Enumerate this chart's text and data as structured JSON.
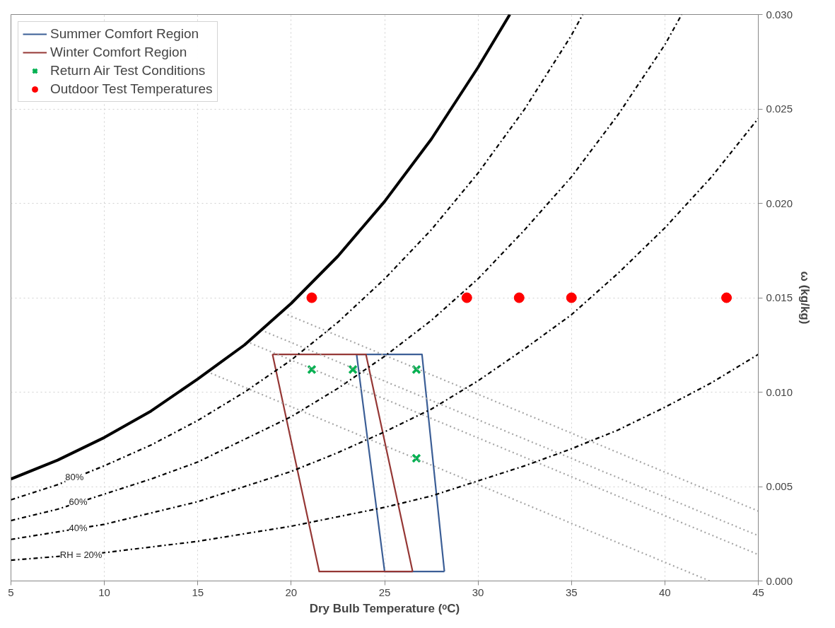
{
  "chart_data": {
    "type": "line",
    "xlabel": "Dry Bulb Temperature (ᵒC)",
    "ylabel": "ω (kg/kg)",
    "xlim": [
      5,
      45
    ],
    "xticks": [
      5,
      10,
      15,
      20,
      25,
      30,
      35,
      40,
      45
    ],
    "ylim": [
      0,
      0.03
    ],
    "yticks": [
      {
        "value": 0,
        "label": "0.000"
      },
      {
        "value": 0.005,
        "label": "0.005"
      },
      {
        "value": 0.01,
        "label": "0.010"
      },
      {
        "value": 0.015,
        "label": "0.015"
      },
      {
        "value": 0.02,
        "label": "0.020"
      },
      {
        "value": 0.025,
        "label": "0.025"
      },
      {
        "value": 0.03,
        "label": "0.030"
      }
    ],
    "grid": true,
    "legend": "top left",
    "series": [
      {
        "name": "Summer Comfort Region",
        "color": "#3b5e96",
        "line_style": "solid",
        "x": [
          23.5,
          27.0,
          28.2
        ],
        "values": [
          0.012,
          0.012,
          0.0005
        ]
      },
      {
        "color": "#3b5e96",
        "line_style": "solid",
        "x": [
          23.5,
          25.0,
          28.2
        ],
        "values": [
          0.012,
          0.0005,
          0.0005
        ]
      },
      {
        "name": "Winter Comfort Region",
        "color": "#953735",
        "line_style": "solid",
        "x": [
          19.0,
          24.0,
          26.5
        ],
        "values": [
          0.012,
          0.012,
          0.0005
        ]
      },
      {
        "color": "#953735",
        "line_style": "solid",
        "x": [
          19.0,
          21.5,
          26.5
        ],
        "values": [
          0.012,
          0.0005,
          0.0005
        ]
      },
      {
        "name": "Return Air Test Conditions",
        "type": "scatter",
        "marker": "cross",
        "color": "#00b050",
        "x": [
          21.1,
          23.3,
          26.7,
          26.7
        ],
        "values": [
          0.0112,
          0.0112,
          0.0112,
          0.0065
        ]
      },
      {
        "name": "Outdoor Test Temperatures",
        "type": "scatter",
        "marker": "circle",
        "color": "#ff0000",
        "x": [
          21.1,
          29.4,
          32.2,
          35.0,
          43.3
        ],
        "values": [
          0.015,
          0.015,
          0.015,
          0.015,
          0.015
        ]
      },
      {
        "color": "#000000",
        "line_style": "solid",
        "x": [
          5,
          7.5,
          10,
          12.5,
          15,
          17.5,
          20,
          22.5,
          25,
          27.5,
          30,
          31.7
        ],
        "values": [
          0.0054,
          0.0064,
          0.0076,
          0.009,
          0.0107,
          0.0125,
          0.0147,
          0.0172,
          0.0201,
          0.0234,
          0.0272,
          0.03
        ]
      },
      {
        "color": "#000000",
        "line_style": "dashdot",
        "x": [
          5,
          7.5,
          10,
          12.5,
          15,
          17.5,
          20,
          22.5,
          25,
          27.5,
          30,
          32.5,
          35,
          35.6
        ],
        "values": [
          0.0043,
          0.0051,
          0.0061,
          0.0072,
          0.0085,
          0.01,
          0.0117,
          0.0137,
          0.016,
          0.0186,
          0.0216,
          0.025,
          0.0289,
          0.03
        ]
      },
      {
        "color": "#000000",
        "line_style": "dashdot",
        "x": [
          5,
          7.5,
          10,
          12.5,
          15,
          17.5,
          20,
          22.5,
          25,
          27.5,
          30,
          32.5,
          35,
          37.5,
          40,
          40.9
        ],
        "values": [
          0.0032,
          0.0038,
          0.0046,
          0.0054,
          0.0063,
          0.0075,
          0.0087,
          0.0102,
          0.0119,
          0.0138,
          0.016,
          0.0186,
          0.0214,
          0.0247,
          0.0284,
          0.03
        ]
      },
      {
        "color": "#000000",
        "line_style": "dashdot",
        "x": [
          5,
          7.5,
          10,
          12.5,
          15,
          17.5,
          20,
          22.5,
          25,
          27.5,
          30,
          32.5,
          35,
          37.5,
          40,
          42.5,
          45
        ],
        "values": [
          0.0022,
          0.0026,
          0.003,
          0.0036,
          0.0042,
          0.005,
          0.0058,
          0.0068,
          0.0079,
          0.0091,
          0.0106,
          0.0123,
          0.0141,
          0.0163,
          0.0187,
          0.0214,
          0.0245
        ]
      },
      {
        "color": "#000000",
        "line_style": "dashdot",
        "x": [
          5,
          7.5,
          10,
          12.5,
          15,
          17.5,
          20,
          22.5,
          25,
          27.5,
          30,
          32.5,
          35,
          37.5,
          40,
          42.5,
          45
        ],
        "values": [
          0.0011,
          0.0013,
          0.0015,
          0.0018,
          0.0021,
          0.0025,
          0.0029,
          0.0034,
          0.0039,
          0.0045,
          0.0053,
          0.0061,
          0.007,
          0.008,
          0.0092,
          0.0105,
          0.012
        ]
      },
      {
        "color": "#a6a6a6",
        "line_style": "dotted",
        "x": [
          19.8,
          45
        ],
        "values": [
          0.0141,
          0.0037
        ]
      },
      {
        "color": "#a6a6a6",
        "line_style": "dotted",
        "x": [
          18.6,
          45
        ],
        "values": [
          0.0132,
          0.0024
        ]
      },
      {
        "color": "#a6a6a6",
        "line_style": "dotted",
        "x": [
          17.8,
          45
        ],
        "values": [
          0.0126,
          0.0014
        ]
      },
      {
        "color": "#a6a6a6",
        "line_style": "dotted",
        "x": [
          15.7,
          42.4
        ],
        "values": [
          0.011,
          0.0
        ]
      }
    ],
    "annotations": [
      {
        "text": "80%",
        "x": 8.4,
        "y": 0.0055
      },
      {
        "text": "60%",
        "x": 8.6,
        "y": 0.0042
      },
      {
        "text": "40%",
        "x": 8.6,
        "y": 0.0028
      },
      {
        "text": "RH = 20%",
        "x": 8.75,
        "y": 0.0014
      }
    ]
  }
}
